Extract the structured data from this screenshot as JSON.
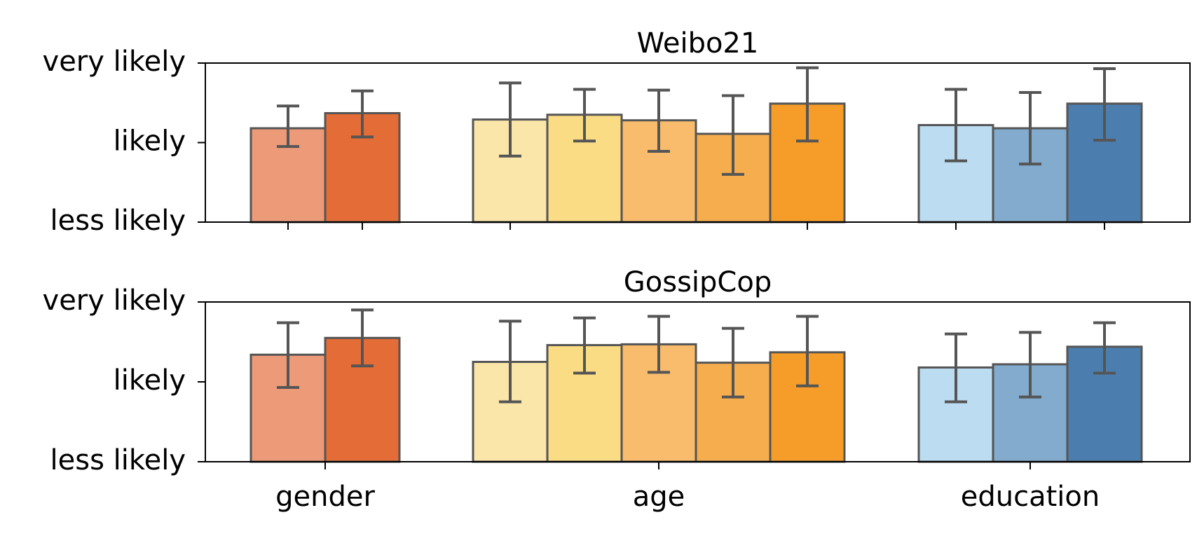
{
  "chart_data": [
    {
      "type": "bar",
      "title": "Weibo21",
      "xlabel": "",
      "ylabel": "",
      "ylim": [
        0,
        2
      ],
      "yticks": [
        {
          "value": 0,
          "label": "less likely"
        },
        {
          "value": 1,
          "label": "likely"
        },
        {
          "value": 2,
          "label": "very likely"
        }
      ],
      "categories": [
        "gender",
        "age",
        "education"
      ],
      "show_category_labels": false,
      "grid": false,
      "groups": [
        {
          "category": "gender",
          "bars": [
            {
              "value": 1.18,
              "err_low": 0.95,
              "err_high": 1.46,
              "color": "#EC9A78"
            },
            {
              "value": 1.37,
              "err_low": 1.07,
              "err_high": 1.65,
              "color": "#E36C37"
            }
          ]
        },
        {
          "category": "age",
          "bars": [
            {
              "value": 1.29,
              "err_low": 0.83,
              "err_high": 1.75,
              "color": "#FBE6A9"
            },
            {
              "value": 1.35,
              "err_low": 1.02,
              "err_high": 1.67,
              "color": "#FADC84"
            },
            {
              "value": 1.28,
              "err_low": 0.89,
              "err_high": 1.66,
              "color": "#F8BC6C"
            },
            {
              "value": 1.11,
              "err_low": 0.6,
              "err_high": 1.59,
              "color": "#F6AD4E"
            },
            {
              "value": 1.49,
              "err_low": 1.02,
              "err_high": 1.94,
              "color": "#F59D28"
            }
          ]
        },
        {
          "category": "education",
          "bars": [
            {
              "value": 1.22,
              "err_low": 0.77,
              "err_high": 1.67,
              "color": "#BCDCF1"
            },
            {
              "value": 1.18,
              "err_low": 0.73,
              "err_high": 1.63,
              "color": "#82ABCD"
            },
            {
              "value": 1.49,
              "err_low": 1.03,
              "err_high": 1.93,
              "color": "#4B7EAF"
            }
          ]
        }
      ]
    },
    {
      "type": "bar",
      "title": "GossipCop",
      "xlabel": "",
      "ylabel": "",
      "ylim": [
        0,
        2
      ],
      "yticks": [
        {
          "value": 0,
          "label": "less likely"
        },
        {
          "value": 1,
          "label": "likely"
        },
        {
          "value": 2,
          "label": "very likely"
        }
      ],
      "categories": [
        "gender",
        "age",
        "education"
      ],
      "show_category_labels": true,
      "grid": false,
      "groups": [
        {
          "category": "gender",
          "bars": [
            {
              "value": 1.34,
              "err_low": 0.93,
              "err_high": 1.74,
              "color": "#EC9A78"
            },
            {
              "value": 1.55,
              "err_low": 1.2,
              "err_high": 1.9,
              "color": "#E36C37"
            }
          ]
        },
        {
          "category": "age",
          "bars": [
            {
              "value": 1.25,
              "err_low": 0.75,
              "err_high": 1.76,
              "color": "#FBE6A9"
            },
            {
              "value": 1.46,
              "err_low": 1.11,
              "err_high": 1.8,
              "color": "#FADC84"
            },
            {
              "value": 1.47,
              "err_low": 1.12,
              "err_high": 1.82,
              "color": "#F8BC6C"
            },
            {
              "value": 1.24,
              "err_low": 0.81,
              "err_high": 1.67,
              "color": "#F6AD4E"
            },
            {
              "value": 1.37,
              "err_low": 0.95,
              "err_high": 1.82,
              "color": "#F59D28"
            }
          ]
        },
        {
          "category": "education",
          "bars": [
            {
              "value": 1.18,
              "err_low": 0.75,
              "err_high": 1.6,
              "color": "#BCDCF1"
            },
            {
              "value": 1.22,
              "err_low": 0.81,
              "err_high": 1.62,
              "color": "#82ABCD"
            },
            {
              "value": 1.44,
              "err_low": 1.11,
              "err_high": 1.74,
              "color": "#4B7EAF"
            }
          ]
        }
      ]
    }
  ]
}
